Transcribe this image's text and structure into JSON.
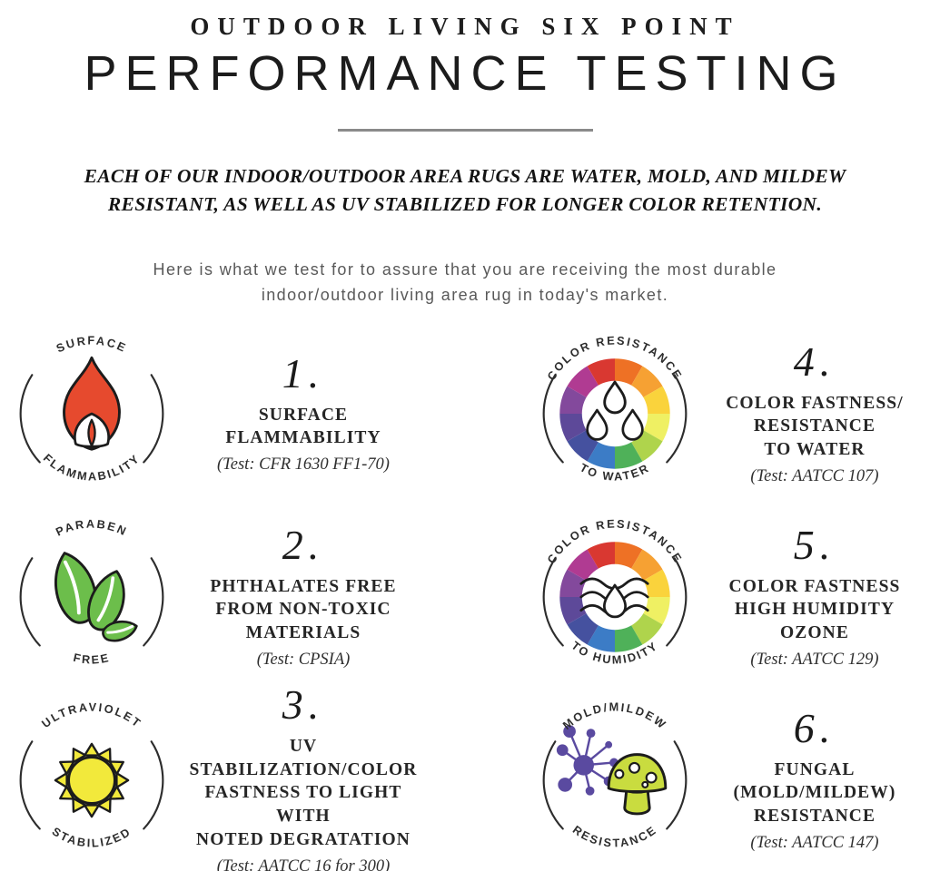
{
  "header": {
    "eyebrow": "OUTDOOR LIVING SIX POINT",
    "title": "PERFORMANCE TESTING",
    "tagline_line1": "EACH OF OUR INDOOR/OUTDOOR AREA RUGS ARE WATER, MOLD, AND MILDEW",
    "tagline_line2": "RESISTANT, AS WELL AS UV STABILIZED FOR LONGER COLOR RETENTION.",
    "intro_line1": "Here is what we test for to assure that you are receiving the most durable",
    "intro_line2": "indoor/outdoor living area rug in today's market."
  },
  "colors": {
    "flame": "#E64A2E",
    "leaf": "#6CBE4B",
    "sun": "#F2E93B",
    "spore_purple": "#5A4AA0",
    "mushroom_lime": "#C9DC3F",
    "white": "#ffffff",
    "badge_line": "#2d2d2d",
    "text_dark": "#262626",
    "intro_gray": "#595959"
  },
  "badge_wheel": {
    "colors": [
      "#EE7125",
      "#F6A133",
      "#FAD33C",
      "#EFF063",
      "#AFD44C",
      "#4FB159",
      "#3C7CC6",
      "#45519F",
      "#5D4999",
      "#83499C",
      "#B03B92",
      "#D93831"
    ]
  },
  "items": [
    {
      "number": "1.",
      "icon": "flame-icon",
      "badge_top": "SURFACE",
      "badge_bottom": "FLAMMABILITY",
      "title_lines": [
        "SURFACE",
        "FLAMMABILITY"
      ],
      "test": "(Test: CFR 1630 FF1-70)"
    },
    {
      "number": "2.",
      "icon": "leaves-icon",
      "badge_top": "PARABEN",
      "badge_bottom": "FREE",
      "title_lines": [
        "PHTHALATES FREE",
        "FROM NON-TOXIC",
        "MATERIALS"
      ],
      "test": "(Test: CPSIA)"
    },
    {
      "number": "3.",
      "icon": "sun-icon",
      "badge_top": "ULTRAVIOLET",
      "badge_bottom": "STABILIZED",
      "title_lines": [
        "UV STABILIZATION/COLOR",
        "FASTNESS TO LIGHT WITH",
        "NOTED DEGRATATION"
      ],
      "test": "(Test: AATCC 16 for 300)"
    },
    {
      "number": "4.",
      "icon": "color-wheel-water-icon",
      "badge_top": "COLOR RESISTANCE",
      "badge_bottom": "TO WATER",
      "title_lines": [
        "COLOR FASTNESS/",
        "RESISTANCE",
        "TO WATER"
      ],
      "test": "(Test: AATCC 107)"
    },
    {
      "number": "5.",
      "icon": "color-wheel-humidity-icon",
      "badge_top": "COLOR RESISTANCE",
      "badge_bottom": "TO HUMIDITY",
      "title_lines": [
        "COLOR FASTNESS",
        "HIGH HUMIDITY",
        "OZONE"
      ],
      "test": "(Test: AATCC 129)"
    },
    {
      "number": "6.",
      "icon": "mold-mildew-icon",
      "badge_top": "MOLD/MILDEW",
      "badge_bottom": "RESISTANCE",
      "title_lines": [
        "FUNGAL (MOLD/MILDEW)",
        "RESISTANCE"
      ],
      "test": "(Test: AATCC 147)"
    }
  ]
}
